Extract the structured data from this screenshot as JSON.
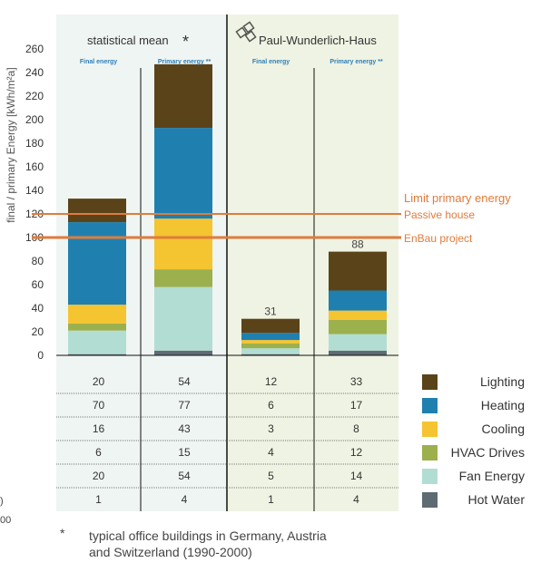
{
  "chart_data": {
    "type": "bar",
    "stacked": true,
    "ylabel": "final / primary Energy [kWh/m²a]",
    "ylim": [
      0,
      260
    ],
    "yticks": [
      0,
      20,
      40,
      60,
      80,
      100,
      120,
      140,
      160,
      180,
      200,
      220,
      240,
      260
    ],
    "groups": [
      {
        "label": "statistical mean",
        "marker": "*",
        "highlight": false
      },
      {
        "label": "Paul-Wunderlich-Haus",
        "marker": "",
        "highlight": true
      }
    ],
    "categories": [
      "Final energy",
      "Primary energy **",
      "Final energy",
      "Primary energy **"
    ],
    "series": [
      {
        "name": "Hot Water",
        "color": "#5f6b73",
        "values": [
          1,
          4,
          1,
          4
        ]
      },
      {
        "name": "Fan Energy",
        "color": "#b2ddd3",
        "values": [
          20,
          54,
          5,
          14
        ]
      },
      {
        "name": "HVAC Drives",
        "color": "#9cb04e",
        "values": [
          6,
          15,
          4,
          12
        ]
      },
      {
        "name": "Cooling",
        "color": "#f5c431",
        "values": [
          16,
          43,
          3,
          8
        ]
      },
      {
        "name": "Heating",
        "color": "#1f80b0",
        "values": [
          70,
          77,
          6,
          17
        ]
      },
      {
        "name": "Lighting",
        "color": "#5b4319",
        "values": [
          20,
          54,
          12,
          33
        ]
      }
    ],
    "table_rows": [
      {
        "name": "Lighting",
        "values": [
          "20",
          "54",
          "12",
          "33"
        ]
      },
      {
        "name": "Heating",
        "values": [
          "70",
          "77",
          "6",
          "17"
        ]
      },
      {
        "name": "Cooling",
        "values": [
          "16",
          "43",
          "3",
          "8"
        ]
      },
      {
        "name": "HVAC Drives",
        "values": [
          "6",
          "15",
          "4",
          "12"
        ]
      },
      {
        "name": "Fan Energy",
        "values": [
          "20",
          "54",
          "5",
          "14"
        ]
      },
      {
        "name": "Hot Water",
        "values": [
          "1",
          "4",
          "1",
          "4"
        ]
      }
    ],
    "bar_labels": [
      {
        "bar": 2,
        "text": "31"
      },
      {
        "bar": 3,
        "text": "88"
      }
    ],
    "reference_lines": [
      {
        "value": 120,
        "label_top": "Limit primary energy",
        "label_bottom": "Passive house",
        "color": "#e07b3c"
      },
      {
        "value": 100,
        "label_top": "EnBau project",
        "label_bottom": "",
        "color": "#e07b3c"
      }
    ],
    "footnote_marker": "*",
    "footnote_text": [
      "typical office buildings in Germany, Austria",
      "and Switzerland (1990-2000)"
    ],
    "edge_fragments": [
      ")",
      "00"
    ],
    "colors": {
      "bg_left": "#eff5f3",
      "bg_right": "#eff3e3",
      "grid": "#111111"
    }
  }
}
